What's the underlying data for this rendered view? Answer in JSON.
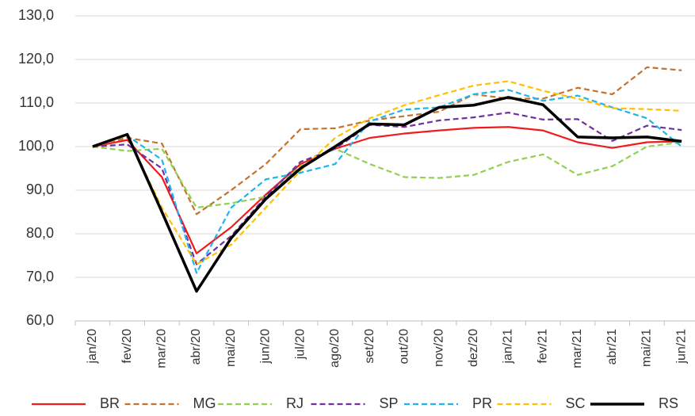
{
  "chart_data": {
    "type": "line",
    "categories": [
      "jan/20",
      "fev/20",
      "mar/20",
      "abr/20",
      "mai/20",
      "jun/20",
      "jul/20",
      "ago/20",
      "set/20",
      "out/20",
      "nov/20",
      "dez/20",
      "jan/21",
      "fev/21",
      "mar/21",
      "abr/21",
      "mai/21",
      "jun/21"
    ],
    "series": [
      {
        "name": "BR",
        "color": "#ee1c1c",
        "dashed": false,
        "values": [
          100,
          101.5,
          93,
          75.5,
          81.5,
          89,
          96,
          99.5,
          102,
          103,
          103.7,
          104.3,
          104.5,
          103.7,
          101,
          99.7,
          101,
          101.2
        ]
      },
      {
        "name": "MG",
        "color": "#c5722d",
        "dashed": true,
        "values": [
          100,
          102,
          100.7,
          84.5,
          90,
          96,
          104,
          104.2,
          106,
          107,
          108,
          112,
          111,
          111,
          113.5,
          112,
          118.2,
          117.5
        ]
      },
      {
        "name": "RJ",
        "color": "#92d050",
        "dashed": true,
        "values": [
          100,
          99,
          99.5,
          86,
          87,
          88.5,
          95.5,
          99.5,
          96,
          93,
          92.8,
          93.5,
          96.5,
          98.2,
          93.5,
          95.5,
          100,
          101
        ]
      },
      {
        "name": "SP",
        "color": "#7030a0",
        "dashed": true,
        "values": [
          100,
          100.5,
          95,
          73,
          79.5,
          88.5,
          96.5,
          99.5,
          105,
          104.5,
          106,
          106.7,
          107.8,
          106.2,
          106.3,
          101.3,
          104.8,
          103.8
        ]
      },
      {
        "name": "PR",
        "color": "#1fb5ea",
        "dashed": true,
        "values": [
          100,
          102.5,
          97,
          71,
          86,
          92.5,
          94,
          96,
          105.8,
          108.5,
          109,
          112,
          113,
          110.5,
          111.7,
          109,
          106.5,
          100
        ]
      },
      {
        "name": "SC",
        "color": "#ffc000",
        "dashed": true,
        "values": [
          100,
          102.5,
          86,
          73,
          77.5,
          86,
          94.5,
          102,
          106.5,
          109.5,
          111.8,
          114,
          115,
          112.8,
          111,
          108.8,
          108.6,
          108.2
        ]
      },
      {
        "name": "RS",
        "color": "#000000",
        "dashed": false,
        "values": [
          100,
          102.8,
          85,
          66.8,
          79,
          88,
          95,
          100,
          105.2,
          105,
          109,
          109.5,
          111.3,
          109.6,
          102.2,
          102,
          102.2,
          101.2
        ]
      }
    ],
    "ylim": [
      60,
      130
    ],
    "yticks": [
      {
        "value": 60,
        "label": "60,0"
      },
      {
        "value": 70,
        "label": "70,0"
      },
      {
        "value": 80,
        "label": "80,0"
      },
      {
        "value": 90,
        "label": "90,0"
      },
      {
        "value": 100,
        "label": "100,0"
      },
      {
        "value": 110,
        "label": "110,0"
      },
      {
        "value": 120,
        "label": "120,0"
      },
      {
        "value": 130,
        "label": "130,0"
      }
    ],
    "grid": true
  }
}
